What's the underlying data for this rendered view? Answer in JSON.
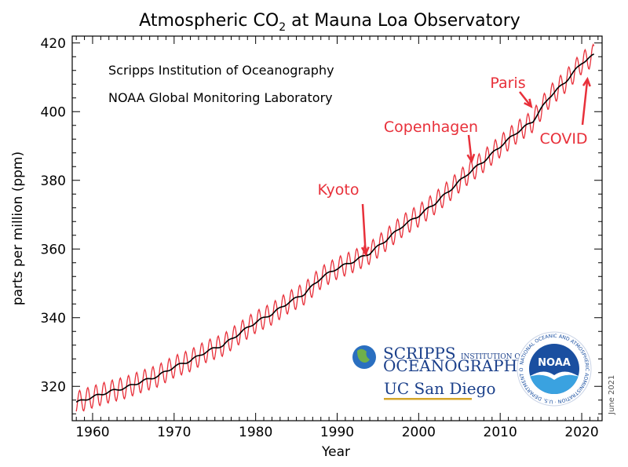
{
  "chart_data": {
    "type": "line",
    "title": "Atmospheric CO",
    "title_subscript": "2",
    "title_suffix": " at Mauna Loa Observatory",
    "xlabel": "Year",
    "ylabel": "parts per million (ppm)",
    "xlim": [
      1957.5,
      2022.5
    ],
    "ylim": [
      310,
      422
    ],
    "x_ticks": [
      1960,
      1970,
      1980,
      1990,
      2000,
      2010,
      2020
    ],
    "y_ticks": [
      320,
      340,
      360,
      380,
      400,
      420
    ],
    "series": [
      {
        "name": "Monthly mean CO2 (seasonal cycle)",
        "color": "#e8303a",
        "seasonal_amplitude_ppm": 3.2,
        "description": "monthly values oscillating about the trend"
      },
      {
        "name": "Seasonally adjusted trend",
        "color": "#000000",
        "x": [
          1958,
          1960,
          1962,
          1964,
          1966,
          1968,
          1970,
          1972,
          1974,
          1976,
          1978,
          1980,
          1982,
          1984,
          1986,
          1988,
          1990,
          1992,
          1994,
          1996,
          1998,
          2000,
          2002,
          2004,
          2006,
          2008,
          2010,
          2012,
          2014,
          2016,
          2018,
          2020,
          2021.5
        ],
        "values": [
          315.3,
          316.9,
          318.4,
          319.6,
          321.4,
          323.0,
          325.7,
          327.5,
          330.2,
          332.0,
          335.4,
          338.7,
          341.1,
          344.4,
          347.0,
          351.6,
          354.4,
          356.4,
          358.8,
          362.6,
          366.7,
          369.7,
          373.3,
          377.5,
          381.9,
          385.6,
          389.9,
          393.9,
          397.2,
          404.2,
          408.7,
          414.2,
          416.5
        ]
      }
    ],
    "annotations": [
      {
        "text": "Kyoto",
        "year": 1993.5,
        "value": 358.5
      },
      {
        "text": "Copenhagen",
        "year": 2006.5,
        "value": 385.5
      },
      {
        "text": "Paris",
        "year": 2013.8,
        "value": 401.5
      },
      {
        "text": "COVID",
        "year": 2020.7,
        "value": 409.5
      }
    ],
    "credits": [
      "Scripps Institution of Oceanography",
      "NOAA Global Monitoring Laboratory"
    ],
    "logos": {
      "scripps_line1": "SCRIPPS",
      "scripps_line1_small": "INSTITUTION OF",
      "scripps_line2": "OCEANOGRAPHY",
      "ucsd": "UC San Diego",
      "noaa": "NOAA",
      "noaa_ring": "NATIONAL OCEANIC AND ATMOSPHERIC ADMINISTRATION · U.S. DEPARTMENT OF COMMERCE ·"
    },
    "date_note": "June 2021",
    "colors": {
      "monthly": "#e8303a",
      "trend": "#000000",
      "annotation": "#e8303a",
      "logo_blue": "#1a3f8a"
    }
  }
}
